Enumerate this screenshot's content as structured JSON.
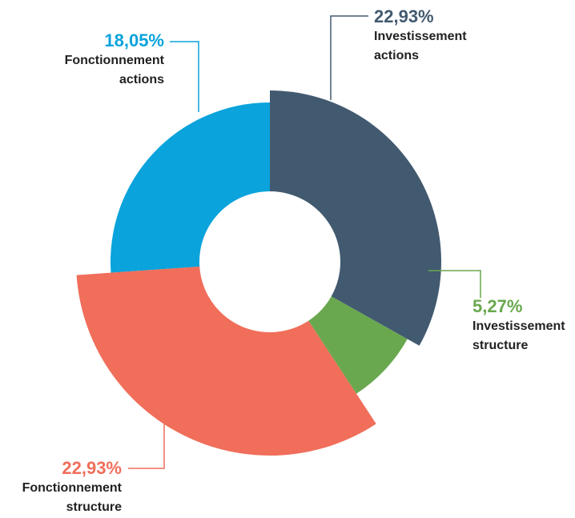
{
  "chart_data": {
    "type": "pie",
    "categories": [
      "Investissement actions",
      "Investissement structure",
      "Fonctionnement structure",
      "Fonctionnement actions"
    ],
    "values": [
      22.93,
      5.27,
      22.93,
      18.05
    ],
    "value_labels": [
      "22,93%",
      "5,27%",
      "22,93%",
      "18,05%"
    ],
    "colors": [
      "#425a70",
      "#6aa84f",
      "#f06e5a",
      "#0aa3dc"
    ]
  }
}
